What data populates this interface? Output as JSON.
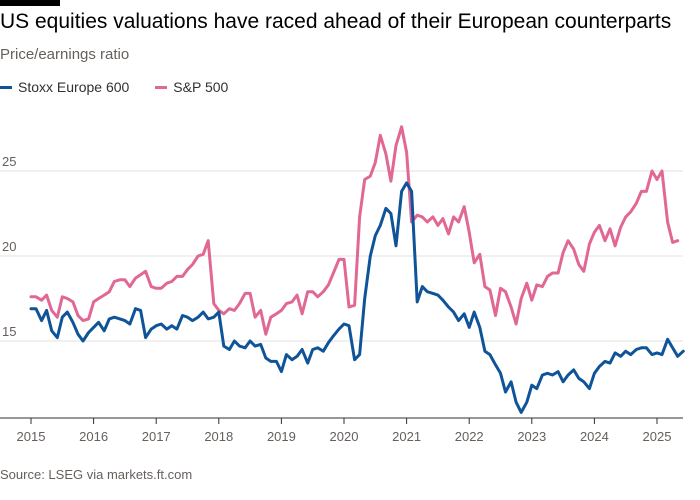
{
  "header": {
    "title": "US equities valuations have raced ahead of their European counterparts",
    "subtitle": "Price/earnings ratio"
  },
  "footer": {
    "source": "Source: LSEG via markets.ft.com"
  },
  "colors": {
    "stoxx": "#0f5499",
    "sp500": "#e16795",
    "grid": "#e6e2df",
    "axis": "#33302e",
    "topbar": "#000000"
  },
  "chart_data": {
    "type": "line",
    "title": "US equities valuations have raced ahead of their European counterparts",
    "subtitle": "Price/earnings ratio",
    "xlabel": "",
    "ylabel": "",
    "xlim": [
      2015.0,
      2025.33
    ],
    "ylim": [
      10.3,
      28
    ],
    "legend_position": "top-left",
    "grid": "horizontal",
    "x_ticks": [
      2015,
      2016,
      2017,
      2018,
      2019,
      2020,
      2021,
      2022,
      2023,
      2024,
      2025
    ],
    "x_tick_labels": [
      "2015",
      "2016",
      "2017",
      "2018",
      "2019",
      "2020",
      "2021",
      "2022",
      "2023",
      "2024",
      "2025"
    ],
    "y_ticks": [
      15,
      20,
      25
    ],
    "y_tick_labels": [
      "15",
      "20",
      "25"
    ],
    "series": [
      {
        "name": "Stoxx Europe 600",
        "color": "#0f5499",
        "points": [
          [
            2015.0,
            16.9
          ],
          [
            2015.08,
            16.9
          ],
          [
            2015.17,
            16.2
          ],
          [
            2015.25,
            16.8
          ],
          [
            2015.33,
            15.6
          ],
          [
            2015.42,
            15.2
          ],
          [
            2015.5,
            16.4
          ],
          [
            2015.58,
            16.7
          ],
          [
            2015.67,
            16.1
          ],
          [
            2015.75,
            15.4
          ],
          [
            2015.83,
            15.0
          ],
          [
            2015.92,
            15.5
          ],
          [
            2016.0,
            15.8
          ],
          [
            2016.08,
            16.1
          ],
          [
            2016.17,
            15.6
          ],
          [
            2016.25,
            16.3
          ],
          [
            2016.33,
            16.4
          ],
          [
            2016.42,
            16.3
          ],
          [
            2016.5,
            16.2
          ],
          [
            2016.58,
            16.0
          ],
          [
            2016.67,
            16.9
          ],
          [
            2016.75,
            16.8
          ],
          [
            2016.83,
            15.2
          ],
          [
            2016.92,
            15.7
          ],
          [
            2017.0,
            15.9
          ],
          [
            2017.08,
            16.0
          ],
          [
            2017.17,
            15.7
          ],
          [
            2017.25,
            15.9
          ],
          [
            2017.33,
            15.7
          ],
          [
            2017.42,
            16.5
          ],
          [
            2017.5,
            16.4
          ],
          [
            2017.58,
            16.2
          ],
          [
            2017.67,
            16.4
          ],
          [
            2017.75,
            16.7
          ],
          [
            2017.83,
            16.3
          ],
          [
            2017.92,
            16.4
          ],
          [
            2018.0,
            16.7
          ],
          [
            2018.08,
            14.7
          ],
          [
            2018.17,
            14.5
          ],
          [
            2018.25,
            15.0
          ],
          [
            2018.33,
            14.7
          ],
          [
            2018.42,
            14.6
          ],
          [
            2018.5,
            15.0
          ],
          [
            2018.58,
            14.7
          ],
          [
            2018.67,
            14.8
          ],
          [
            2018.75,
            14.0
          ],
          [
            2018.83,
            13.8
          ],
          [
            2018.92,
            13.8
          ],
          [
            2019.0,
            13.2
          ],
          [
            2019.08,
            14.2
          ],
          [
            2019.17,
            13.9
          ],
          [
            2019.25,
            14.1
          ],
          [
            2019.33,
            14.5
          ],
          [
            2019.42,
            13.7
          ],
          [
            2019.5,
            14.5
          ],
          [
            2019.58,
            14.6
          ],
          [
            2019.67,
            14.4
          ],
          [
            2019.75,
            14.9
          ],
          [
            2019.83,
            15.3
          ],
          [
            2019.92,
            15.7
          ],
          [
            2020.0,
            16.0
          ],
          [
            2020.08,
            15.9
          ],
          [
            2020.17,
            13.9
          ],
          [
            2020.25,
            14.2
          ],
          [
            2020.33,
            17.5
          ],
          [
            2020.42,
            20.0
          ],
          [
            2020.5,
            21.2
          ],
          [
            2020.58,
            21.8
          ],
          [
            2020.67,
            22.8
          ],
          [
            2020.75,
            22.5
          ],
          [
            2020.83,
            20.6
          ],
          [
            2020.92,
            23.8
          ],
          [
            2021.0,
            24.3
          ],
          [
            2021.08,
            23.8
          ],
          [
            2021.17,
            17.3
          ],
          [
            2021.25,
            18.2
          ],
          [
            2021.33,
            17.9
          ],
          [
            2021.42,
            17.8
          ],
          [
            2021.5,
            17.7
          ],
          [
            2021.58,
            17.4
          ],
          [
            2021.67,
            17.0
          ],
          [
            2021.75,
            16.7
          ],
          [
            2021.83,
            16.2
          ],
          [
            2021.92,
            16.6
          ],
          [
            2022.0,
            15.8
          ],
          [
            2022.08,
            16.7
          ],
          [
            2022.17,
            15.8
          ],
          [
            2022.25,
            14.4
          ],
          [
            2022.33,
            14.2
          ],
          [
            2022.42,
            13.6
          ],
          [
            2022.5,
            13.1
          ],
          [
            2022.58,
            12.0
          ],
          [
            2022.67,
            12.6
          ],
          [
            2022.75,
            11.4
          ],
          [
            2022.83,
            10.8
          ],
          [
            2022.92,
            11.4
          ],
          [
            2023.0,
            12.4
          ],
          [
            2023.08,
            12.2
          ],
          [
            2023.17,
            13.0
          ],
          [
            2023.25,
            13.1
          ],
          [
            2023.33,
            13.0
          ],
          [
            2023.42,
            13.2
          ],
          [
            2023.5,
            12.6
          ],
          [
            2023.58,
            13.0
          ],
          [
            2023.67,
            13.3
          ],
          [
            2023.75,
            12.8
          ],
          [
            2023.83,
            12.6
          ],
          [
            2023.92,
            12.2
          ],
          [
            2024.0,
            13.1
          ],
          [
            2024.08,
            13.5
          ],
          [
            2024.17,
            13.8
          ],
          [
            2024.25,
            13.7
          ],
          [
            2024.33,
            14.3
          ],
          [
            2024.42,
            14.1
          ],
          [
            2024.5,
            14.4
          ],
          [
            2024.58,
            14.2
          ],
          [
            2024.67,
            14.5
          ],
          [
            2024.75,
            14.6
          ],
          [
            2024.83,
            14.6
          ],
          [
            2024.92,
            14.2
          ],
          [
            2025.0,
            14.3
          ],
          [
            2025.08,
            14.2
          ],
          [
            2025.17,
            15.1
          ],
          [
            2025.25,
            14.6
          ],
          [
            2025.33,
            14.1
          ],
          [
            2025.42,
            14.4
          ]
        ]
      },
      {
        "name": "S&P 500",
        "color": "#e16795",
        "points": [
          [
            2015.0,
            17.6
          ],
          [
            2015.08,
            17.6
          ],
          [
            2015.17,
            17.4
          ],
          [
            2015.25,
            17.7
          ],
          [
            2015.33,
            16.8
          ],
          [
            2015.42,
            16.4
          ],
          [
            2015.5,
            17.6
          ],
          [
            2015.58,
            17.5
          ],
          [
            2015.67,
            17.3
          ],
          [
            2015.75,
            16.5
          ],
          [
            2015.83,
            16.2
          ],
          [
            2015.92,
            16.3
          ],
          [
            2016.0,
            17.3
          ],
          [
            2016.08,
            17.5
          ],
          [
            2016.17,
            17.7
          ],
          [
            2016.25,
            17.9
          ],
          [
            2016.33,
            18.5
          ],
          [
            2016.42,
            18.6
          ],
          [
            2016.5,
            18.6
          ],
          [
            2016.58,
            18.2
          ],
          [
            2016.67,
            18.7
          ],
          [
            2016.75,
            18.9
          ],
          [
            2016.83,
            19.1
          ],
          [
            2016.92,
            18.2
          ],
          [
            2017.0,
            18.1
          ],
          [
            2017.08,
            18.1
          ],
          [
            2017.17,
            18.4
          ],
          [
            2017.25,
            18.5
          ],
          [
            2017.33,
            18.8
          ],
          [
            2017.42,
            18.8
          ],
          [
            2017.5,
            19.2
          ],
          [
            2017.58,
            19.5
          ],
          [
            2017.67,
            20.0
          ],
          [
            2017.75,
            20.1
          ],
          [
            2017.83,
            20.9
          ],
          [
            2017.92,
            17.2
          ],
          [
            2018.0,
            16.8
          ],
          [
            2018.08,
            16.6
          ],
          [
            2018.17,
            16.9
          ],
          [
            2018.25,
            16.8
          ],
          [
            2018.33,
            17.2
          ],
          [
            2018.42,
            17.8
          ],
          [
            2018.5,
            17.8
          ],
          [
            2018.58,
            16.4
          ],
          [
            2018.67,
            16.8
          ],
          [
            2018.75,
            15.4
          ],
          [
            2018.83,
            16.4
          ],
          [
            2018.92,
            16.6
          ],
          [
            2019.0,
            16.8
          ],
          [
            2019.08,
            17.2
          ],
          [
            2019.17,
            17.3
          ],
          [
            2019.25,
            17.7
          ],
          [
            2019.33,
            16.6
          ],
          [
            2019.42,
            17.9
          ],
          [
            2019.5,
            17.9
          ],
          [
            2019.58,
            17.6
          ],
          [
            2019.67,
            17.9
          ],
          [
            2019.75,
            18.3
          ],
          [
            2019.83,
            19.0
          ],
          [
            2019.92,
            19.8
          ],
          [
            2020.0,
            19.8
          ],
          [
            2020.08,
            17.0
          ],
          [
            2020.17,
            17.1
          ],
          [
            2020.25,
            22.3
          ],
          [
            2020.33,
            24.5
          ],
          [
            2020.42,
            24.7
          ],
          [
            2020.5,
            25.5
          ],
          [
            2020.58,
            27.1
          ],
          [
            2020.67,
            26.0
          ],
          [
            2020.75,
            24.4
          ],
          [
            2020.83,
            26.5
          ],
          [
            2020.92,
            27.6
          ],
          [
            2021.0,
            26.1
          ],
          [
            2021.08,
            22.0
          ],
          [
            2021.17,
            22.4
          ],
          [
            2021.25,
            22.3
          ],
          [
            2021.33,
            22.0
          ],
          [
            2021.42,
            22.3
          ],
          [
            2021.5,
            21.8
          ],
          [
            2021.58,
            22.2
          ],
          [
            2021.67,
            21.3
          ],
          [
            2021.75,
            22.3
          ],
          [
            2021.83,
            22.0
          ],
          [
            2021.92,
            22.9
          ],
          [
            2022.0,
            21.4
          ],
          [
            2022.08,
            19.6
          ],
          [
            2022.17,
            20.1
          ],
          [
            2022.25,
            18.2
          ],
          [
            2022.33,
            18.0
          ],
          [
            2022.42,
            16.5
          ],
          [
            2022.5,
            18.1
          ],
          [
            2022.58,
            17.9
          ],
          [
            2022.67,
            17.0
          ],
          [
            2022.75,
            16.0
          ],
          [
            2022.83,
            17.5
          ],
          [
            2022.92,
            18.4
          ],
          [
            2023.0,
            17.4
          ],
          [
            2023.08,
            18.3
          ],
          [
            2023.17,
            18.2
          ],
          [
            2023.25,
            18.8
          ],
          [
            2023.33,
            19.0
          ],
          [
            2023.42,
            19.0
          ],
          [
            2023.5,
            20.2
          ],
          [
            2023.58,
            20.9
          ],
          [
            2023.67,
            20.4
          ],
          [
            2023.75,
            19.5
          ],
          [
            2023.83,
            19.1
          ],
          [
            2023.92,
            20.7
          ],
          [
            2024.0,
            21.4
          ],
          [
            2024.08,
            21.8
          ],
          [
            2024.17,
            20.9
          ],
          [
            2024.25,
            21.6
          ],
          [
            2024.33,
            20.6
          ],
          [
            2024.42,
            21.7
          ],
          [
            2024.5,
            22.3
          ],
          [
            2024.58,
            22.6
          ],
          [
            2024.67,
            23.1
          ],
          [
            2024.75,
            23.8
          ],
          [
            2024.83,
            23.8
          ],
          [
            2024.92,
            25.0
          ],
          [
            2025.0,
            24.5
          ],
          [
            2025.08,
            25.0
          ],
          [
            2025.17,
            22.0
          ],
          [
            2025.25,
            20.8
          ],
          [
            2025.33,
            20.9
          ]
        ]
      }
    ]
  }
}
